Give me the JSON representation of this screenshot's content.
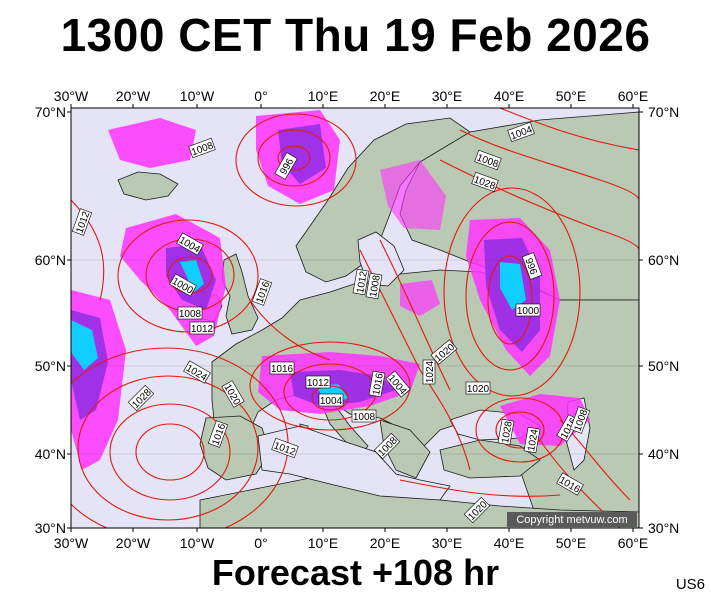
{
  "title": "1300 CET Thu 19 Feb 2026",
  "subtitle": "Forecast +108 hr",
  "model_code": "US6",
  "copyright": "Copyright metvuw.com",
  "colors": {
    "ocean": "#e4e4f6",
    "land": "#b9c9b4",
    "isobar": "#e21a0e",
    "precip_light": "#ff33ff",
    "precip_mid": "#8a2be2",
    "precip_heavy": "#00e0ff"
  },
  "axes": {
    "lon_labels_top": [
      "30°W",
      "20°W",
      "10°W",
      "0°",
      "10°E",
      "20°E",
      "30°E",
      "40°E",
      "50°E",
      "60°E"
    ],
    "lon_labels_bottom": [
      "30°W",
      "20°W",
      "10°W",
      "0°",
      "10°E",
      "20°E",
      "30°E",
      "40°E",
      "50°E",
      "60°E"
    ],
    "lat_labels_left": [
      "70°N",
      "60°N",
      "50°N",
      "40°N",
      "30°N"
    ],
    "lat_labels_right": [
      "70°N",
      "60°N",
      "50°N",
      "40°N",
      "30°N"
    ]
  },
  "pressure_labels": [
    "1008",
    "996",
    "1012",
    "1004",
    "1000",
    "1008",
    "1012",
    "1016",
    "1012",
    "1008",
    "1020",
    "1016",
    "1024",
    "1028",
    "1008",
    "1004",
    "996",
    "1000",
    "1004",
    "1008",
    "1012",
    "1016",
    "1020",
    "1024",
    "1028",
    "1016",
    "1012",
    "1008",
    "1004",
    "1020",
    "1028",
    "1024",
    "1016",
    "1008",
    "1016",
    "1020"
  ]
}
